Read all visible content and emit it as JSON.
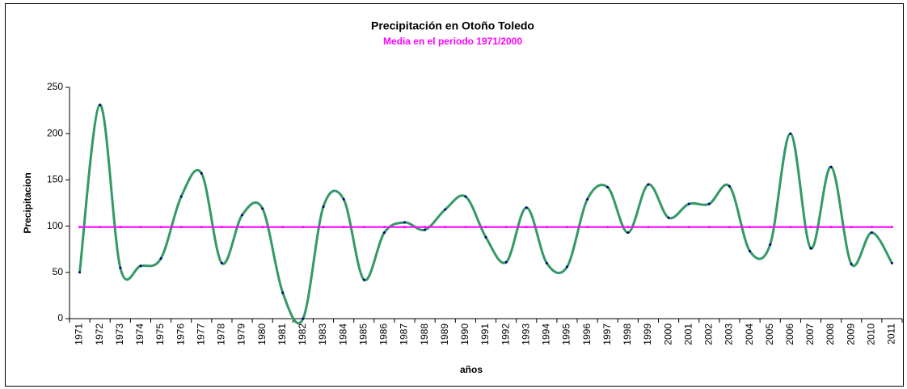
{
  "chart_data": {
    "type": "line",
    "title": "Precipitación en  Otoño Toledo",
    "subtitle": "Media en el periodo 1971/2000",
    "subtitle_color": "#ff00ff",
    "xlabel": "años",
    "ylabel": "Precipitacion",
    "categories": [
      "1971",
      "1972",
      "1973",
      "1974",
      "1975",
      "1976",
      "1977",
      "1978",
      "1979",
      "1980",
      "1981",
      "1982",
      "1983",
      "1984",
      "1985",
      "1986",
      "1987",
      "1988",
      "1989",
      "1990",
      "1991",
      "1992",
      "1993",
      "1994",
      "1995",
      "1996",
      "1997",
      "1998",
      "1999",
      "2000",
      "2001",
      "2002",
      "2003",
      "2004",
      "2005",
      "2006",
      "2007",
      "2008",
      "2009",
      "2010",
      "2011"
    ],
    "series": [
      {
        "color": "#339966",
        "marker_color": "#000080",
        "smooth": true,
        "values": [
          50,
          231,
          55,
          57,
          65,
          132,
          157,
          60,
          112,
          119,
          28,
          0,
          121,
          129,
          42,
          93,
          104,
          96,
          118,
          132,
          88,
          61,
          120,
          60,
          56,
          129,
          142,
          93,
          145,
          109,
          124,
          124,
          143,
          73,
          80,
          200,
          76,
          164,
          59,
          93,
          60
        ]
      },
      {
        "color": "#ff00ff",
        "marker_color": "#ff00ff",
        "smooth": false,
        "values": [
          99,
          99,
          99,
          99,
          99,
          99,
          99,
          99,
          99,
          99,
          99,
          99,
          99,
          99,
          99,
          99,
          99,
          99,
          99,
          99,
          99,
          99,
          99,
          99,
          99,
          99,
          99,
          99,
          99,
          99,
          99,
          99,
          99,
          99,
          99,
          99,
          99,
          99,
          99,
          99,
          99
        ]
      }
    ],
    "ylim": [
      0,
      250
    ],
    "yticks": [
      0,
      50,
      100,
      150,
      200,
      250
    ],
    "grid": false
  }
}
